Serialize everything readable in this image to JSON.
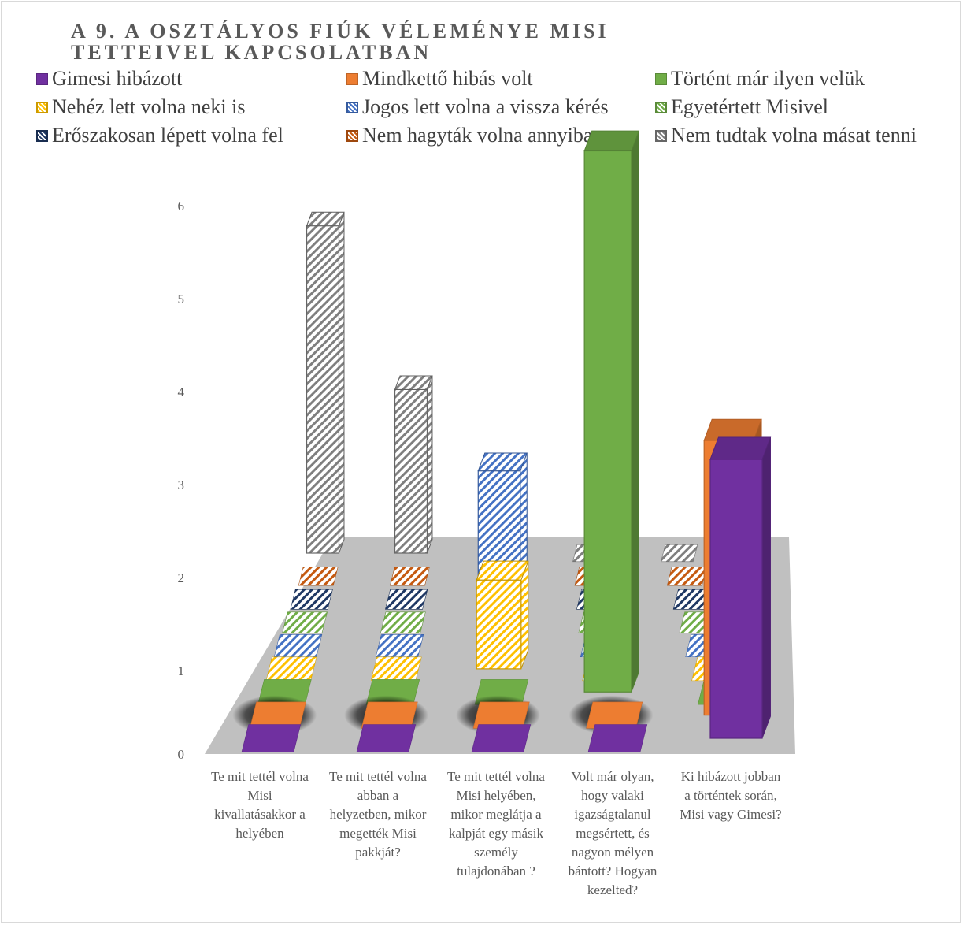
{
  "chart_data": {
    "type": "bar",
    "subtype": "3d-column",
    "title": "A 9. A OSZTÁLYOS FIÚK VÉLEMÉNYE MISI TETTEIVEL KAPCSOLATBAN",
    "legend_position": "top",
    "ylim": [
      0,
      6
    ],
    "yticks": [
      "0",
      "1",
      "2",
      "3",
      "4",
      "5",
      "6"
    ],
    "categories": [
      "Te mit tettél volna Misi kivallatásakkor a helyében",
      "Te mit tettél volna abban a helyzetben, mikor megették Misi pakkját?",
      "Te mit tettél volna Misi helyében, mikor meglátja a kalpját egy másik személy tulajdonában ?",
      "Volt már olyan, hogy valaki igazságtalanul megsértett, és nagyon mélyen bántott? Hogyan kezelted?",
      "Ki hibázott jobban a történtek során, Misi vagy Gimesi?"
    ],
    "series": [
      {
        "name": "Gimesi hibázott",
        "color": "#7030a0",
        "pattern": "solid",
        "values": [
          0,
          0,
          0,
          0,
          3
        ]
      },
      {
        "name": "Mindkettő hibás volt",
        "color": "#ed7d31",
        "pattern": "solid",
        "values": [
          0,
          0,
          0,
          0,
          3
        ]
      },
      {
        "name": "Történt már ilyen velük",
        "color": "#70ad47",
        "pattern": "solid",
        "values": [
          0,
          0,
          0,
          6,
          0
        ]
      },
      {
        "name": "Nehéz lett volna neki is",
        "color": "#ffc000",
        "pattern": "hatch",
        "values": [
          0,
          0,
          1,
          0,
          0
        ]
      },
      {
        "name": "Jogos lett volna a vissza kérés",
        "color": "#4472c4",
        "pattern": "hatch",
        "values": [
          0,
          0,
          2,
          0,
          0
        ]
      },
      {
        "name": "Egyetértett Misivel",
        "color": "#70ad47",
        "pattern": "hatch",
        "values": [
          0,
          0,
          0,
          0,
          0
        ]
      },
      {
        "name": "Erőszakosan lépett volna fel",
        "color": "#1f3864",
        "pattern": "hatch",
        "values": [
          0,
          0,
          0,
          0,
          0
        ]
      },
      {
        "name": "Nem hagyták volna annyiban",
        "color": "#c55a11",
        "pattern": "hatch",
        "values": [
          0,
          0,
          0,
          0,
          0
        ]
      },
      {
        "name": "Nem tudtak volna másat tenni",
        "color": "#7f7f7f",
        "pattern": "hatch",
        "values": [
          4,
          2,
          0,
          0,
          0
        ]
      }
    ]
  }
}
